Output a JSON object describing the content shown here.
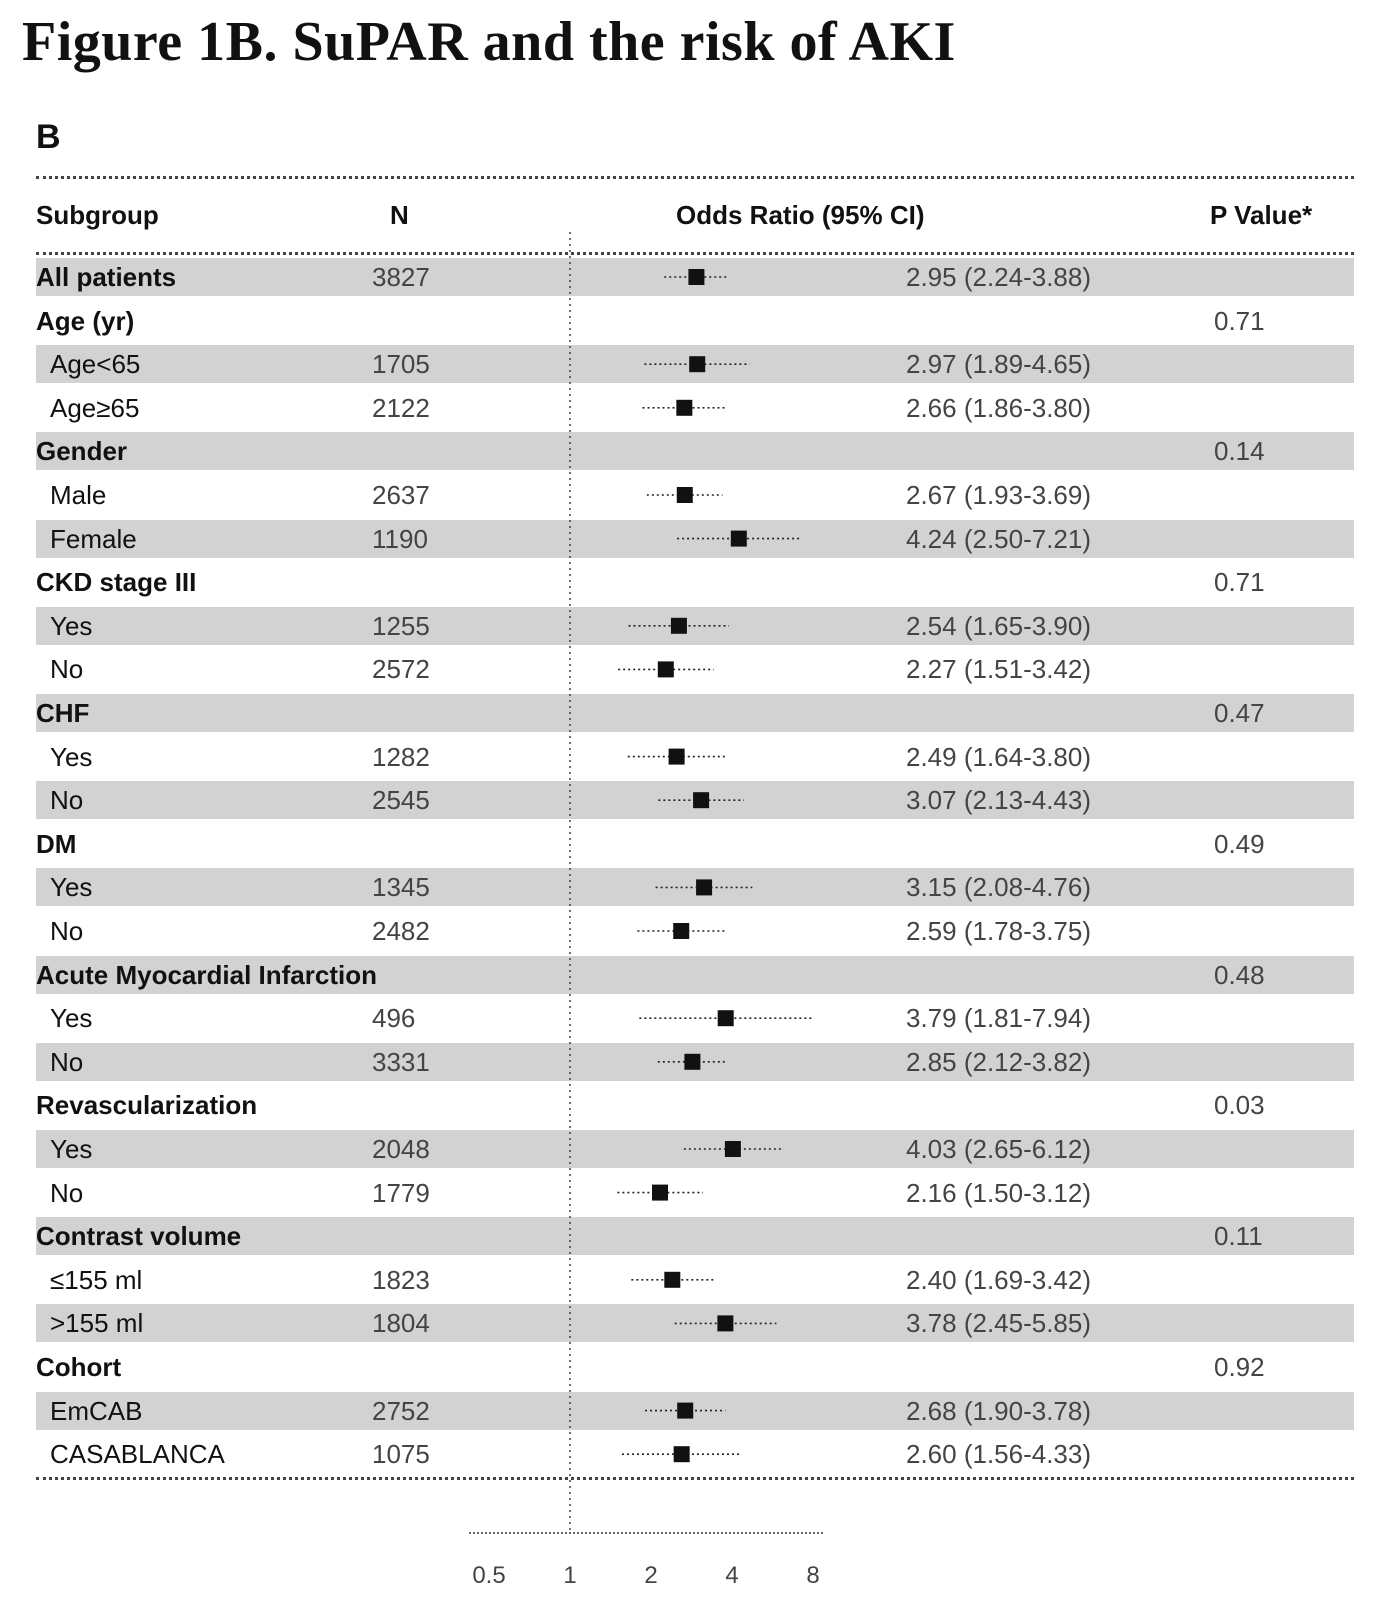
{
  "title": "Figure 1B. SuPAR and the risk of AKI",
  "panel_label": "B",
  "headers": {
    "subgroup": "Subgroup",
    "n": "N",
    "or": "Odds Ratio (95% CI)",
    "p": "P Value*"
  },
  "chart_data": {
    "type": "forest",
    "x_scale": "log2",
    "x_ticks": [
      "0.5",
      "1",
      "2",
      "4",
      "8"
    ],
    "x_range": [
      0.5,
      8
    ],
    "reference_line": 1,
    "rows": [
      {
        "label": "All patients",
        "kind": "group",
        "n": "3827",
        "or": 2.95,
        "lo": 2.24,
        "hi": 3.88,
        "ci_text": "2.95 (2.24-3.88)",
        "p": ""
      },
      {
        "label": "Age (yr)",
        "kind": "group",
        "n": "",
        "ci_text": "",
        "p": "0.71"
      },
      {
        "label": "Age<65",
        "kind": "sub",
        "n": "1705",
        "or": 2.97,
        "lo": 1.89,
        "hi": 4.65,
        "ci_text": "2.97 (1.89-4.65)",
        "p": ""
      },
      {
        "label": "Age≥65",
        "kind": "sub",
        "n": "2122",
        "or": 2.66,
        "lo": 1.86,
        "hi": 3.8,
        "ci_text": "2.66 (1.86-3.80)",
        "p": ""
      },
      {
        "label": "Gender",
        "kind": "group",
        "n": "",
        "ci_text": "",
        "p": "0.14"
      },
      {
        "label": "Male",
        "kind": "sub",
        "n": "2637",
        "or": 2.67,
        "lo": 1.93,
        "hi": 3.69,
        "ci_text": "2.67 (1.93-3.69)",
        "p": ""
      },
      {
        "label": "Female",
        "kind": "sub",
        "n": "1190",
        "or": 4.24,
        "lo": 2.5,
        "hi": 7.21,
        "ci_text": "4.24 (2.50-7.21)",
        "p": ""
      },
      {
        "label": "CKD stage III",
        "kind": "group",
        "n": "",
        "ci_text": "",
        "p": "0.71"
      },
      {
        "label": "Yes",
        "kind": "sub",
        "n": "1255",
        "or": 2.54,
        "lo": 1.65,
        "hi": 3.9,
        "ci_text": "2.54 (1.65-3.90)",
        "p": ""
      },
      {
        "label": "No",
        "kind": "sub",
        "n": "2572",
        "or": 2.27,
        "lo": 1.51,
        "hi": 3.42,
        "ci_text": "2.27 (1.51-3.42)",
        "p": ""
      },
      {
        "label": "CHF",
        "kind": "group",
        "n": "",
        "ci_text": "",
        "p": "0.47"
      },
      {
        "label": "Yes",
        "kind": "sub",
        "n": "1282",
        "or": 2.49,
        "lo": 1.64,
        "hi": 3.8,
        "ci_text": "2.49 (1.64-3.80)",
        "p": ""
      },
      {
        "label": "No",
        "kind": "sub",
        "n": "2545",
        "or": 3.07,
        "lo": 2.13,
        "hi": 4.43,
        "ci_text": "3.07 (2.13-4.43)",
        "p": ""
      },
      {
        "label": "DM",
        "kind": "group",
        "n": "",
        "ci_text": "",
        "p": "0.49"
      },
      {
        "label": "Yes",
        "kind": "sub",
        "n": "1345",
        "or": 3.15,
        "lo": 2.08,
        "hi": 4.76,
        "ci_text": "3.15 (2.08-4.76)",
        "p": ""
      },
      {
        "label": "No",
        "kind": "sub",
        "n": "2482",
        "or": 2.59,
        "lo": 1.78,
        "hi": 3.75,
        "ci_text": "2.59 (1.78-3.75)",
        "p": ""
      },
      {
        "label": "Acute Myocardial Infarction",
        "kind": "group",
        "n": "",
        "ci_text": "",
        "p": "0.48"
      },
      {
        "label": "Yes",
        "kind": "sub",
        "n": "496",
        "or": 3.79,
        "lo": 1.81,
        "hi": 7.94,
        "ci_text": "3.79 (1.81-7.94)",
        "p": ""
      },
      {
        "label": "No",
        "kind": "sub",
        "n": "3331",
        "or": 2.85,
        "lo": 2.12,
        "hi": 3.82,
        "ci_text": "2.85 (2.12-3.82)",
        "p": ""
      },
      {
        "label": "Revascularization",
        "kind": "group",
        "n": "",
        "ci_text": "",
        "p": "0.03"
      },
      {
        "label": "Yes",
        "kind": "sub",
        "n": "2048",
        "or": 4.03,
        "lo": 2.65,
        "hi": 6.12,
        "ci_text": "4.03 (2.65-6.12)",
        "p": ""
      },
      {
        "label": "No",
        "kind": "sub",
        "n": "1779",
        "or": 2.16,
        "lo": 1.5,
        "hi": 3.12,
        "ci_text": "2.16 (1.50-3.12)",
        "p": ""
      },
      {
        "label": "Contrast volume",
        "kind": "group",
        "n": "",
        "ci_text": "",
        "p": "0.11"
      },
      {
        "label": "≤155 ml",
        "kind": "sub",
        "n": "1823",
        "or": 2.4,
        "lo": 1.69,
        "hi": 3.42,
        "ci_text": "2.40 (1.69-3.42)",
        "p": ""
      },
      {
        "label": ">155 ml",
        "kind": "sub",
        "n": "1804",
        "or": 3.78,
        "lo": 2.45,
        "hi": 5.85,
        "ci_text": "3.78 (2.45-5.85)",
        "p": ""
      },
      {
        "label": "Cohort",
        "kind": "group",
        "n": "",
        "ci_text": "",
        "p": "0.92"
      },
      {
        "label": "EmCAB",
        "kind": "sub",
        "n": "2752",
        "or": 2.68,
        "lo": 1.9,
        "hi": 3.78,
        "ci_text": "2.68 (1.90-3.78)",
        "p": ""
      },
      {
        "label": "CASABLANCA",
        "kind": "sub",
        "n": "1075",
        "or": 2.6,
        "lo": 1.56,
        "hi": 4.33,
        "ci_text": "2.60 (1.56-4.33)",
        "p": ""
      }
    ]
  }
}
